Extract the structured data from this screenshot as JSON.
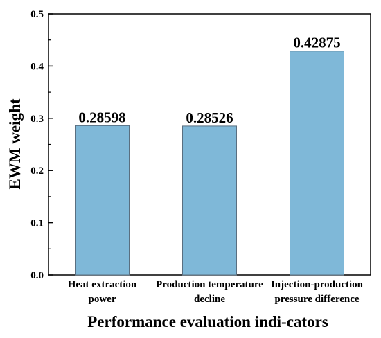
{
  "chart_data": {
    "type": "bar",
    "categories": [
      [
        "Heat extraction",
        "power"
      ],
      [
        "Production temperature",
        "decline"
      ],
      [
        "Injection-production",
        "pressure difference"
      ]
    ],
    "values": [
      0.28598,
      0.28526,
      0.42875
    ],
    "data_labels": [
      "0.28598",
      "0.28526",
      "0.42875"
    ],
    "xlabel": "Performance evaluation indi-cators",
    "ylabel": "EWM weight",
    "ylim": [
      0,
      0.5
    ],
    "yticks": [
      "0.0",
      "0.1",
      "0.2",
      "0.3",
      "0.4",
      "0.5"
    ],
    "grid": false,
    "bar_color": "#7fb8d8",
    "bar_edge_color": "#5a6f80"
  }
}
